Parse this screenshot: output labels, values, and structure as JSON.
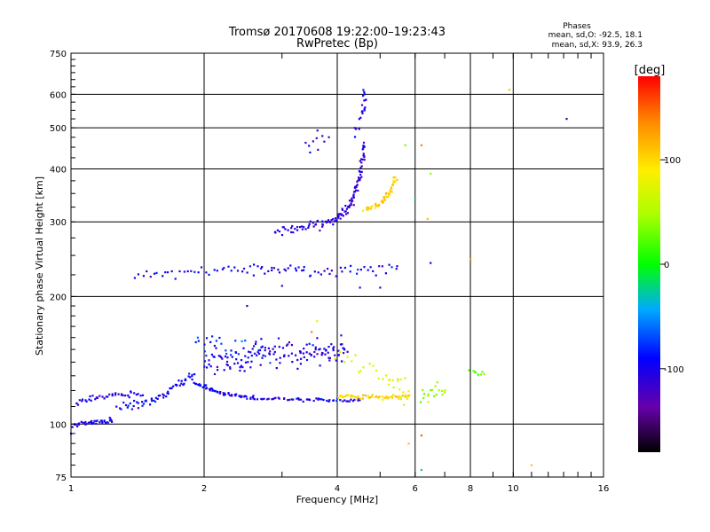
{
  "chart_data": {
    "type": "scatter",
    "title": "Tromsø 20170608 19:22:00–19:23:43",
    "subtitle": "RwPretec (Bp)",
    "xlabel": "Frequency [MHz]",
    "ylabel": "Stationary phase Virtual Height [km]",
    "x_scale": "log",
    "y_scale": "log",
    "xlim": [
      1,
      16
    ],
    "ylim": [
      75,
      750
    ],
    "x_ticks": [
      1,
      2,
      4,
      6,
      8,
      10,
      16
    ],
    "y_ticks": [
      75,
      100,
      200,
      300,
      400,
      500,
      600,
      750
    ],
    "grid": true,
    "phase_stats": {
      "title": "Phases",
      "line_o": "mean, sd,O:  -92.5, 18.1",
      "line_x": "mean, sd,X:  93.9, 26.3"
    },
    "colorbar": {
      "label": "[deg]",
      "range": [
        -180,
        180
      ],
      "ticks": [
        100,
        0,
        -100
      ]
    },
    "point_groups": [
      {
        "name": "e1",
        "trace": [
          [
            1.0,
            100
          ],
          [
            1.12,
            101
          ],
          [
            1.25,
            102
          ]
        ],
        "jitter": 1.5,
        "phase": -100,
        "n": 40
      },
      {
        "name": "e2",
        "trace": [
          [
            1.02,
            112
          ],
          [
            1.2,
            117
          ],
          [
            1.45,
            118
          ]
        ],
        "jitter": 2,
        "phase": -103,
        "n": 40
      },
      {
        "name": "e3",
        "trace": [
          [
            1.28,
            110
          ],
          [
            1.45,
            111
          ],
          [
            1.6,
            116
          ],
          [
            1.75,
            124
          ],
          [
            1.9,
            132
          ]
        ],
        "jitter": 2,
        "phase": -95,
        "n": 60
      },
      {
        "name": "e4",
        "trace": [
          [
            1.9,
            125
          ],
          [
            2.2,
            118
          ],
          [
            2.6,
            115
          ],
          [
            3.5,
            114
          ],
          [
            4.5,
            114
          ]
        ],
        "jitter": 1,
        "phase": -100,
        "n": 110
      },
      {
        "name": "e5",
        "trace": [
          [
            4.0,
            116
          ],
          [
            5.8,
            116
          ]
        ],
        "jitter": 1.5,
        "phase": 100,
        "n": 55
      },
      {
        "name": "e6",
        "trace": [
          [
            2.0,
            140
          ],
          [
            2.6,
            145
          ],
          [
            3.4,
            148
          ],
          [
            4.2,
            147
          ]
        ],
        "jitter": 10,
        "phase": -105,
        "n": 140
      },
      {
        "name": "e7",
        "trace": [
          [
            1.9,
            160
          ],
          [
            2.3,
            152
          ],
          [
            2.8,
            150
          ]
        ],
        "jitter": 8,
        "phase": -80,
        "n": 30
      },
      {
        "name": "e8",
        "trace": [
          [
            4.0,
            145
          ],
          [
            5.2,
            130
          ],
          [
            5.8,
            118
          ]
        ],
        "jitter": 8,
        "phase": 70,
        "n": 30
      },
      {
        "name": "e9",
        "trace": [
          [
            6.2,
            118
          ],
          [
            7.0,
            120
          ]
        ],
        "jitter": 5,
        "phase": 40,
        "n": 18
      },
      {
        "name": "es",
        "trace": [
          [
            1.4,
            225
          ],
          [
            2.4,
            232
          ],
          [
            3.5,
            230
          ],
          [
            5.5,
            232
          ]
        ],
        "jitter": 7,
        "phase": -98,
        "n": 85
      },
      {
        "name": "f1",
        "trace": [
          [
            2.9,
            286
          ],
          [
            3.5,
            292
          ],
          [
            4.0,
            305
          ],
          [
            4.3,
            330
          ],
          [
            4.5,
            380
          ],
          [
            4.6,
            460
          ]
        ],
        "jitter": 7,
        "phase": -112,
        "n": 120
      },
      {
        "name": "f1b",
        "trace": [
          [
            4.4,
            480
          ],
          [
            4.6,
            560
          ],
          [
            4.6,
            620
          ]
        ],
        "jitter": 20,
        "phase": -105,
        "n": 20
      },
      {
        "name": "f2",
        "trace": [
          [
            4.6,
            320
          ],
          [
            5.0,
            330
          ],
          [
            5.25,
            350
          ],
          [
            5.45,
            380
          ]
        ],
        "jitter": 6,
        "phase": 100,
        "n": 50
      },
      {
        "name": "s1",
        "trace": [
          [
            3.4,
            440
          ],
          [
            3.8,
            470
          ]
        ],
        "jitter": 25,
        "phase": -115,
        "n": 10
      },
      {
        "name": "s2",
        "trace": [
          [
            8.0,
            133
          ],
          [
            8.6,
            132
          ]
        ],
        "jitter": 2,
        "phase": 20,
        "n": 8
      }
    ],
    "isolated_points": [
      [
        13.2,
        525,
        -120
      ],
      [
        9.8,
        615,
        110
      ],
      [
        6.2,
        455,
        140
      ],
      [
        6.5,
        390,
        40
      ],
      [
        6.4,
        305,
        110
      ],
      [
        8.0,
        245,
        130
      ],
      [
        6.5,
        240,
        -90
      ],
      [
        5.8,
        90,
        110
      ],
      [
        6.2,
        94,
        150
      ],
      [
        6.2,
        78,
        -20
      ],
      [
        11.0,
        80,
        110
      ],
      [
        2.5,
        190,
        -110
      ],
      [
        3.5,
        165,
        140
      ],
      [
        3.6,
        175,
        80
      ],
      [
        1.0,
        95,
        -90
      ],
      [
        5.0,
        210,
        -110
      ],
      [
        4.5,
        210,
        -110
      ],
      [
        3.0,
        212,
        -110
      ],
      [
        6.0,
        340,
        -20
      ],
      [
        5.7,
        455,
        30
      ]
    ]
  }
}
